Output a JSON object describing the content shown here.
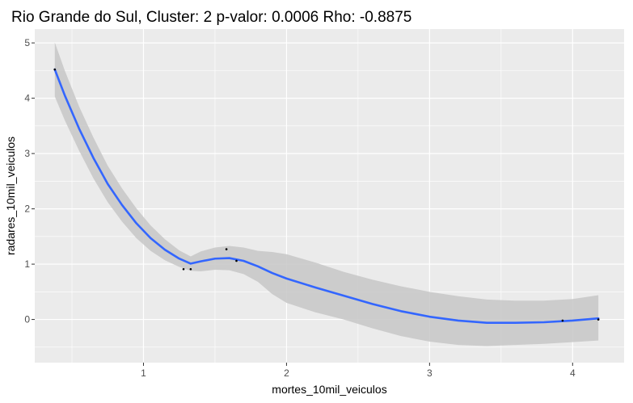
{
  "chart_data": {
    "type": "scatter",
    "title": "Rio Grande do Sul, Cluster: 2 p-valor: 0.0006 Rho: -0.8875",
    "xlabel": "mortes_10mil_veiculos",
    "ylabel": "radares_10mil_veiculos",
    "xlim": [
      0.24,
      4.36
    ],
    "ylim": [
      -0.78,
      5.25
    ],
    "xticks": [
      1,
      2,
      3,
      4
    ],
    "yticks": [
      0,
      1,
      2,
      3,
      4,
      5
    ],
    "grid": true,
    "points": {
      "x": [
        0.38,
        1.28,
        1.33,
        1.58,
        1.65,
        3.93,
        4.18
      ],
      "y": [
        4.52,
        0.91,
        0.91,
        1.27,
        1.06,
        -0.02,
        0.0
      ]
    },
    "smooth": {
      "x": [
        0.38,
        0.45,
        0.55,
        0.65,
        0.75,
        0.85,
        0.95,
        1.05,
        1.15,
        1.25,
        1.33,
        1.4,
        1.5,
        1.6,
        1.7,
        1.8,
        1.9,
        2.0,
        2.2,
        2.4,
        2.6,
        2.8,
        3.0,
        3.2,
        3.4,
        3.6,
        3.8,
        4.0,
        4.18
      ],
      "y": [
        4.52,
        4.05,
        3.45,
        2.92,
        2.45,
        2.07,
        1.74,
        1.47,
        1.26,
        1.1,
        1.01,
        1.05,
        1.1,
        1.11,
        1.06,
        0.96,
        0.84,
        0.74,
        0.58,
        0.43,
        0.28,
        0.15,
        0.05,
        -0.02,
        -0.06,
        -0.06,
        -0.05,
        -0.02,
        0.02
      ],
      "lower": [
        4.03,
        3.6,
        3.05,
        2.55,
        2.12,
        1.77,
        1.47,
        1.24,
        1.07,
        0.95,
        0.88,
        0.87,
        0.9,
        0.89,
        0.82,
        0.68,
        0.46,
        0.3,
        0.13,
        0.0,
        -0.16,
        -0.3,
        -0.4,
        -0.46,
        -0.48,
        -0.46,
        -0.44,
        -0.41,
        -0.38
      ],
      "upper": [
        5.01,
        4.5,
        3.85,
        3.29,
        2.78,
        2.37,
        2.01,
        1.7,
        1.45,
        1.25,
        1.14,
        1.23,
        1.3,
        1.33,
        1.3,
        1.24,
        1.22,
        1.18,
        1.03,
        0.86,
        0.72,
        0.6,
        0.5,
        0.42,
        0.36,
        0.34,
        0.34,
        0.37,
        0.44
      ]
    },
    "colors": {
      "panel": "#ebebeb",
      "grid_major": "#ffffff",
      "band": "#c7c7c7",
      "line": "#3366ff",
      "point": "#000000"
    }
  }
}
